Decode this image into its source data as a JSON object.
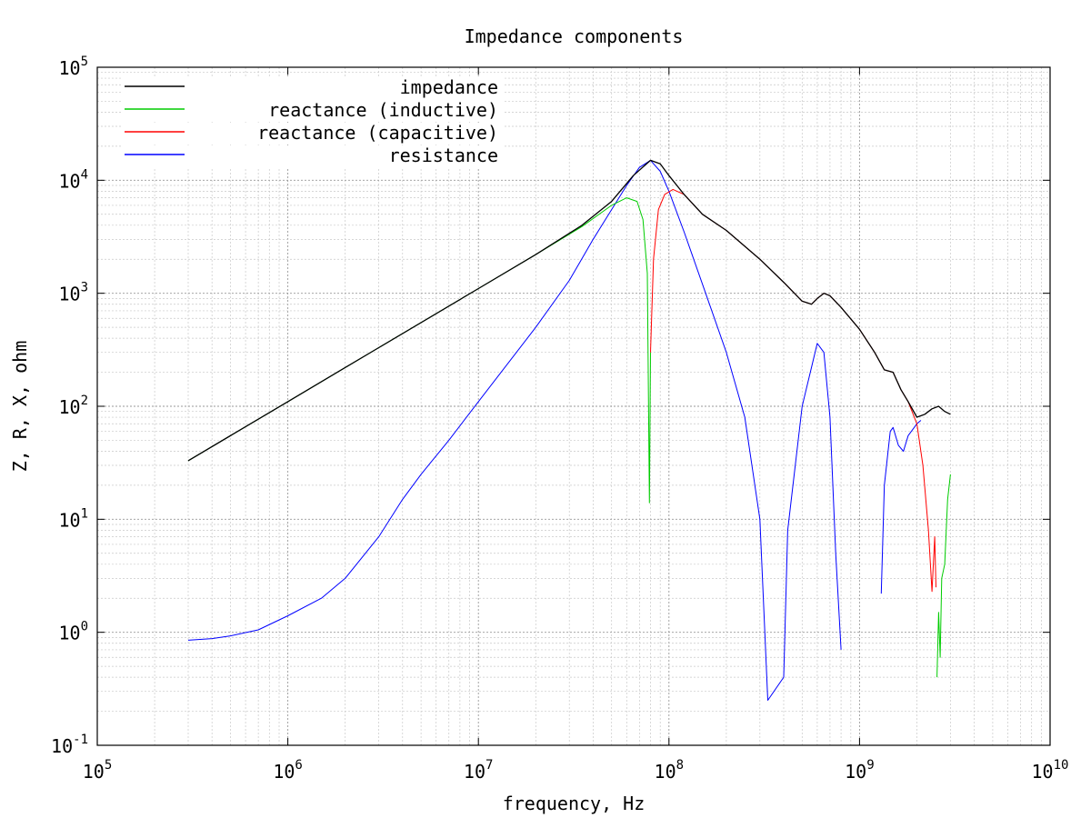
{
  "chart_data": {
    "type": "line",
    "title": "Impedance components",
    "xlabel": "frequency, Hz",
    "ylabel": "Z, R, X, ohm",
    "x_scale": "log",
    "y_scale": "log",
    "xlim": [
      100000,
      10000000000
    ],
    "ylim": [
      0.1,
      100000
    ],
    "grid": true,
    "legend_position": "top-left",
    "x_ticks": [
      {
        "base": "10",
        "exp": "5",
        "value": 100000
      },
      {
        "base": "10",
        "exp": "6",
        "value": 1000000
      },
      {
        "base": "10",
        "exp": "7",
        "value": 10000000
      },
      {
        "base": "10",
        "exp": "8",
        "value": 100000000
      },
      {
        "base": "10",
        "exp": "9",
        "value": 1000000000
      },
      {
        "base": "10",
        "exp": "10",
        "value": 10000000000
      }
    ],
    "y_ticks": [
      {
        "base": "10",
        "exp": "-1",
        "value": 0.1
      },
      {
        "base": "10",
        "exp": "0",
        "value": 1
      },
      {
        "base": "10",
        "exp": "1",
        "value": 10
      },
      {
        "base": "10",
        "exp": "2",
        "value": 100
      },
      {
        "base": "10",
        "exp": "3",
        "value": 1000
      },
      {
        "base": "10",
        "exp": "4",
        "value": 10000
      },
      {
        "base": "10",
        "exp": "5",
        "value": 100000
      }
    ],
    "series": [
      {
        "name": "impedance",
        "color": "#000000",
        "points": [
          [
            300000,
            33
          ],
          [
            1000000,
            110
          ],
          [
            3000000,
            330
          ],
          [
            10000000,
            1100
          ],
          [
            20000000,
            2200
          ],
          [
            35000000,
            4000
          ],
          [
            50000000,
            6500
          ],
          [
            65000000,
            11000
          ],
          [
            80000000,
            15000
          ],
          [
            90000000,
            14000
          ],
          [
            100000000,
            11000
          ],
          [
            120000000,
            7500
          ],
          [
            150000000,
            5000
          ],
          [
            200000000,
            3600
          ],
          [
            300000000,
            2000
          ],
          [
            400000000,
            1250
          ],
          [
            500000000,
            850
          ],
          [
            560000000,
            800
          ],
          [
            600000000,
            900
          ],
          [
            650000000,
            1000
          ],
          [
            700000000,
            950
          ],
          [
            800000000,
            750
          ],
          [
            1000000000,
            480
          ],
          [
            1200000000,
            300
          ],
          [
            1350000000,
            210
          ],
          [
            1500000000,
            200
          ],
          [
            1650000000,
            140
          ],
          [
            1800000000,
            110
          ],
          [
            2000000000,
            80
          ],
          [
            2200000000,
            85
          ],
          [
            2400000000,
            95
          ],
          [
            2600000000,
            100
          ],
          [
            2800000000,
            90
          ],
          [
            3000000000,
            85
          ]
        ]
      },
      {
        "name": "reactance (inductive)",
        "color": "#00cc00",
        "points": [
          [
            300000,
            33
          ],
          [
            1000000,
            110
          ],
          [
            3000000,
            330
          ],
          [
            10000000,
            1100
          ],
          [
            20000000,
            2200
          ],
          [
            35000000,
            3900
          ],
          [
            50000000,
            6000
          ],
          [
            60000000,
            7000
          ],
          [
            68000000,
            6500
          ],
          [
            73000000,
            4500
          ],
          [
            77000000,
            1500
          ],
          [
            79000000,
            14
          ],
          [
            80000000,
            300
          ]
        ],
        "points_2": [
          [
            2550000000,
            0.4
          ],
          [
            2600000000,
            1.5
          ],
          [
            2650000000,
            0.6
          ],
          [
            2700000000,
            3
          ],
          [
            2800000000,
            4
          ],
          [
            2900000000,
            15
          ],
          [
            3000000000,
            25
          ]
        ]
      },
      {
        "name": "reactance (capacitive)",
        "color": "#ff0000",
        "points": [
          [
            80000000,
            300
          ],
          [
            83000000,
            2000
          ],
          [
            88000000,
            5500
          ],
          [
            95000000,
            7500
          ],
          [
            105000000,
            8300
          ],
          [
            120000000,
            7500
          ],
          [
            150000000,
            5000
          ],
          [
            200000000,
            3600
          ],
          [
            300000000,
            2000
          ],
          [
            400000000,
            1250
          ],
          [
            500000000,
            850
          ],
          [
            560000000,
            800
          ],
          [
            600000000,
            900
          ],
          [
            650000000,
            1000
          ],
          [
            700000000,
            950
          ],
          [
            800000000,
            750
          ],
          [
            1000000000,
            480
          ],
          [
            1200000000,
            300
          ],
          [
            1350000000,
            210
          ],
          [
            1500000000,
            200
          ],
          [
            1650000000,
            140
          ],
          [
            1800000000,
            110
          ],
          [
            2000000000,
            70
          ],
          [
            2150000000,
            30
          ],
          [
            2300000000,
            8
          ],
          [
            2400000000,
            2.3
          ],
          [
            2480000000,
            7
          ],
          [
            2520000000,
            2.5
          ]
        ]
      },
      {
        "name": "resistance",
        "color": "#0000ff",
        "points": [
          [
            300000,
            0.85
          ],
          [
            400000,
            0.88
          ],
          [
            500000,
            0.93
          ],
          [
            700000,
            1.05
          ],
          [
            1000000,
            1.4
          ],
          [
            1500000,
            2.0
          ],
          [
            2000000,
            3.0
          ],
          [
            3000000,
            7
          ],
          [
            4000000,
            15
          ],
          [
            5000000,
            25
          ],
          [
            7000000,
            50
          ],
          [
            10000000,
            110
          ],
          [
            20000000,
            500
          ],
          [
            30000000,
            1300
          ],
          [
            40000000,
            3000
          ],
          [
            50000000,
            5500
          ],
          [
            60000000,
            9000
          ],
          [
            70000000,
            13000
          ],
          [
            80000000,
            15000
          ],
          [
            90000000,
            12000
          ],
          [
            100000000,
            8000
          ],
          [
            120000000,
            3500
          ],
          [
            150000000,
            1200
          ],
          [
            200000000,
            300
          ],
          [
            250000000,
            80
          ],
          [
            300000000,
            10
          ],
          [
            330000000,
            0.25
          ],
          [
            400000000,
            0.4
          ],
          [
            420000000,
            8
          ],
          [
            500000000,
            100
          ],
          [
            600000000,
            360
          ],
          [
            650000000,
            300
          ],
          [
            700000000,
            80
          ],
          [
            750000000,
            5
          ],
          [
            800000000,
            0.7
          ]
        ],
        "points_2": [
          [
            1300000000,
            2.2
          ],
          [
            1350000000,
            20
          ],
          [
            1450000000,
            60
          ],
          [
            1500000000,
            65
          ],
          [
            1600000000,
            45
          ],
          [
            1700000000,
            40
          ],
          [
            1800000000,
            55
          ],
          [
            2000000000,
            70
          ],
          [
            2100000000,
            75
          ]
        ]
      }
    ]
  }
}
